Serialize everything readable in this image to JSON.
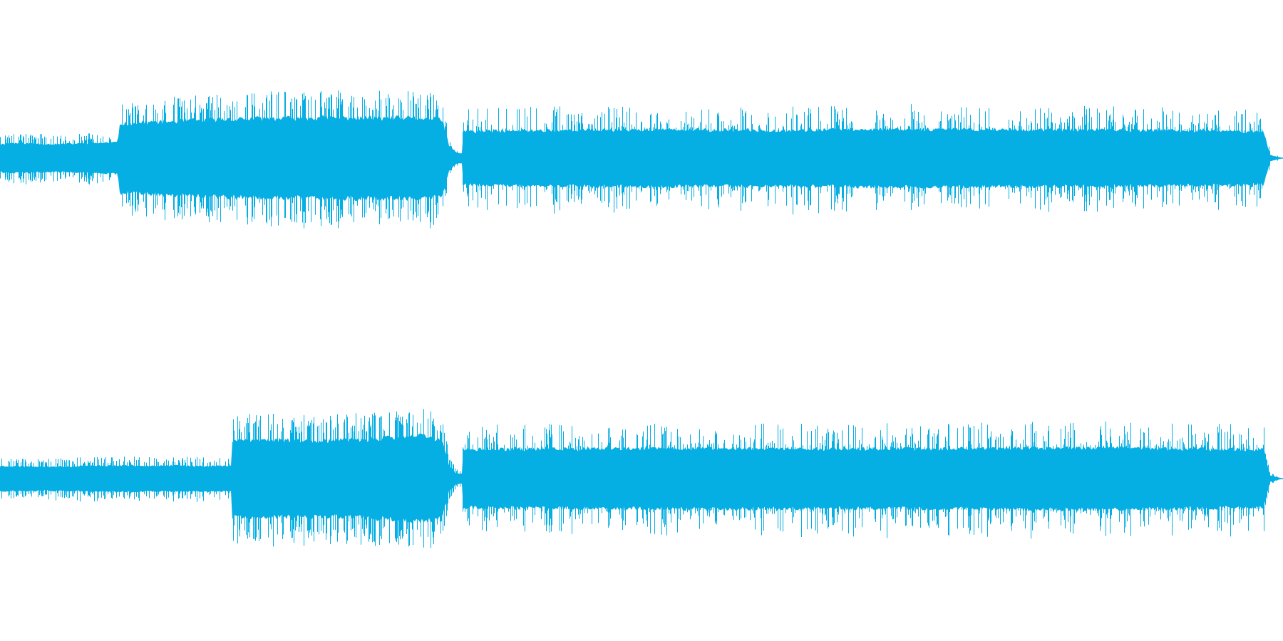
{
  "waveform": {
    "color": "#05AEE3",
    "background": "#FFFFFF",
    "channels": [
      {
        "name": "",
        "seed": 11,
        "envelope": [
          [
            0.0,
            0.22
          ],
          [
            0.008,
            0.24
          ],
          [
            0.045,
            0.22
          ],
          [
            0.092,
            0.25
          ],
          [
            0.093,
            0.55
          ],
          [
            0.18,
            0.62
          ],
          [
            0.26,
            0.64
          ],
          [
            0.335,
            0.63
          ],
          [
            0.345,
            0.6
          ],
          [
            0.35,
            0.2
          ],
          [
            0.356,
            0.08
          ],
          [
            0.36,
            0.08
          ],
          [
            0.361,
            0.42
          ],
          [
            0.42,
            0.44
          ],
          [
            0.5,
            0.45
          ],
          [
            0.6,
            0.44
          ],
          [
            0.7,
            0.46
          ],
          [
            0.8,
            0.45
          ],
          [
            0.9,
            0.44
          ],
          [
            0.985,
            0.42
          ],
          [
            0.99,
            0.05
          ],
          [
            1.0,
            0.0
          ]
        ],
        "transient_sections": [
          [
            0.0,
            0.093
          ],
          [
            0.093,
            0.35
          ]
        ]
      },
      {
        "name": "",
        "seed": 23,
        "envelope": [
          [
            0.0,
            0.2
          ],
          [
            0.045,
            0.19
          ],
          [
            0.09,
            0.21
          ],
          [
            0.18,
            0.2
          ],
          [
            0.181,
            0.62
          ],
          [
            0.26,
            0.6
          ],
          [
            0.3,
            0.64
          ],
          [
            0.33,
            0.68
          ],
          [
            0.345,
            0.6
          ],
          [
            0.35,
            0.2
          ],
          [
            0.356,
            0.08
          ],
          [
            0.36,
            0.08
          ],
          [
            0.361,
            0.46
          ],
          [
            0.45,
            0.47
          ],
          [
            0.55,
            0.48
          ],
          [
            0.65,
            0.47
          ],
          [
            0.75,
            0.48
          ],
          [
            0.85,
            0.49
          ],
          [
            0.93,
            0.47
          ],
          [
            0.985,
            0.46
          ],
          [
            0.99,
            0.05
          ],
          [
            1.0,
            0.0
          ]
        ],
        "transient_sections": [
          [
            0.0,
            0.181
          ],
          [
            0.181,
            0.35
          ]
        ]
      }
    ]
  }
}
